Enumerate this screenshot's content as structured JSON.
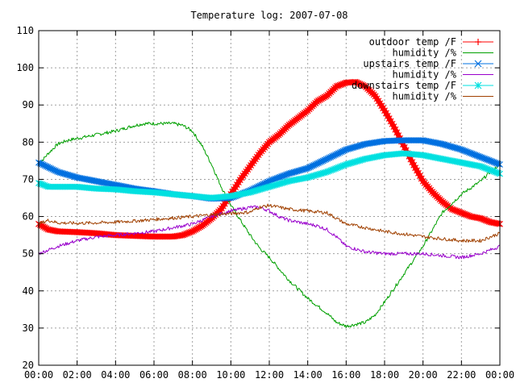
{
  "chart_data": {
    "type": "line",
    "title": "Temperature log: 2007-07-08",
    "xlabel": "",
    "ylabel": "",
    "xlim": [
      0,
      24
    ],
    "ylim": [
      20,
      110
    ],
    "x_ticks": [
      "00:00",
      "02:00",
      "04:00",
      "06:00",
      "08:00",
      "10:00",
      "12:00",
      "14:00",
      "16:00",
      "18:00",
      "20:00",
      "22:00",
      "00:00"
    ],
    "y_ticks": [
      20,
      30,
      40,
      50,
      60,
      70,
      80,
      90,
      100,
      110
    ],
    "grid": true,
    "legend_position": "top-right",
    "series": [
      {
        "name": "outdoor temp /F",
        "color": "#ff0000",
        "marker": "plus",
        "thick": true,
        "x": [
          0,
          0.5,
          1,
          2,
          3,
          4,
          5,
          6,
          7,
          7.5,
          8,
          8.5,
          9,
          9.5,
          10,
          10.5,
          11,
          11.5,
          12,
          12.5,
          13,
          13.5,
          14,
          14.5,
          15,
          15.5,
          16,
          16.5,
          17,
          17.5,
          18,
          18.5,
          19,
          19.5,
          20,
          20.5,
          21,
          21.5,
          22,
          22.5,
          23,
          23.5,
          24
        ],
        "y": [
          58,
          56.5,
          56,
          55.8,
          55.5,
          55,
          54.8,
          54.6,
          54.6,
          55,
          56,
          57.5,
          59.5,
          62,
          66,
          70,
          73.5,
          77,
          80,
          82,
          84.5,
          86.5,
          88.5,
          91,
          92.5,
          95,
          96,
          96.2,
          95,
          92.5,
          88.5,
          84,
          79,
          74,
          69.5,
          66.5,
          64,
          62,
          61,
          60,
          59.5,
          58.5,
          58
        ]
      },
      {
        "name": "humidity /%",
        "color": "#00a000",
        "marker": "none",
        "thick": false,
        "x": [
          0,
          0.5,
          1,
          1.5,
          2,
          3,
          4,
          5,
          5.5,
          6,
          6.5,
          7,
          7.5,
          8,
          8.5,
          9,
          9.5,
          10,
          10.5,
          11,
          11.5,
          12,
          13,
          14,
          15,
          15.5,
          16,
          16.5,
          17,
          17.5,
          18,
          19,
          20,
          21,
          22,
          23,
          23.5,
          24
        ],
        "y": [
          74,
          77,
          79.5,
          80.5,
          81,
          82,
          83,
          84.5,
          85,
          85,
          85,
          85,
          84.5,
          83,
          79,
          74,
          68,
          63,
          59,
          55,
          51.5,
          49,
          43,
          38,
          34,
          31.5,
          30.5,
          31,
          31.5,
          33.5,
          37,
          44.5,
          52,
          61,
          66,
          69.5,
          72,
          74
        ]
      },
      {
        "name": "upstairs temp /F",
        "color": "#0070e0",
        "marker": "cross",
        "thick": true,
        "x": [
          0,
          1,
          2,
          3,
          4,
          5,
          6,
          7,
          8,
          9,
          10,
          11,
          12,
          13,
          14,
          15,
          16,
          17,
          18,
          19,
          20,
          21,
          22,
          23,
          24
        ],
        "y": [
          74.5,
          72,
          70.5,
          69.5,
          68.5,
          67.5,
          66.8,
          66,
          65.5,
          64.8,
          65,
          67,
          69.5,
          71.5,
          73,
          75.5,
          78,
          79.5,
          80.3,
          80.5,
          80.5,
          79.5,
          78,
          76,
          74
        ]
      },
      {
        "name": "humidity /%",
        "color": "#9900cc",
        "marker": "none",
        "thick": false,
        "x": [
          0,
          0.5,
          1,
          2,
          3,
          4,
          5,
          6,
          7,
          8,
          9,
          10,
          11,
          11.5,
          12,
          12.5,
          13,
          14,
          14.5,
          15,
          15.5,
          16,
          17,
          18,
          19,
          20,
          21,
          22,
          23,
          23.5,
          24
        ],
        "y": [
          50,
          51,
          52,
          53.5,
          54.5,
          55,
          55.5,
          56,
          57,
          58,
          60,
          61.5,
          62.5,
          62.5,
          61.5,
          60,
          59,
          58,
          57.5,
          56.5,
          54.5,
          52,
          50.5,
          50,
          50,
          50,
          49.5,
          49,
          50,
          51,
          52
        ]
      },
      {
        "name": "downstairs temp /F",
        "color": "#00e0e0",
        "marker": "star",
        "thick": true,
        "x": [
          0,
          0.5,
          1,
          2,
          3,
          4,
          5,
          6,
          7,
          8,
          9,
          10,
          11,
          12,
          13,
          14,
          15,
          16,
          17,
          18,
          19,
          20,
          21,
          22,
          23,
          24
        ],
        "y": [
          69,
          68,
          68,
          68,
          67.5,
          67.3,
          66.8,
          66.5,
          66,
          65.5,
          65,
          65.5,
          66.5,
          68,
          69.5,
          70.5,
          72,
          74,
          75.5,
          76.5,
          77,
          76.5,
          75.5,
          74.5,
          73.5,
          71.5
        ]
      },
      {
        "name": "humidity /%",
        "color": "#a04000",
        "marker": "none",
        "thick": false,
        "x": [
          0,
          0.5,
          1,
          2,
          3,
          4,
          5,
          6,
          7,
          8,
          9,
          10,
          11,
          11.5,
          12,
          13,
          14,
          15,
          15.5,
          16,
          17,
          18,
          19,
          20,
          21,
          22,
          23,
          24
        ],
        "y": [
          58,
          59,
          58.3,
          58.2,
          58.3,
          58.5,
          58.8,
          59.2,
          59.6,
          60,
          60.5,
          60.8,
          61.2,
          62.5,
          63,
          62,
          61.5,
          61,
          59.5,
          58,
          57,
          56,
          55.3,
          54.6,
          54,
          53.5,
          53.5,
          55.5
        ]
      }
    ]
  }
}
